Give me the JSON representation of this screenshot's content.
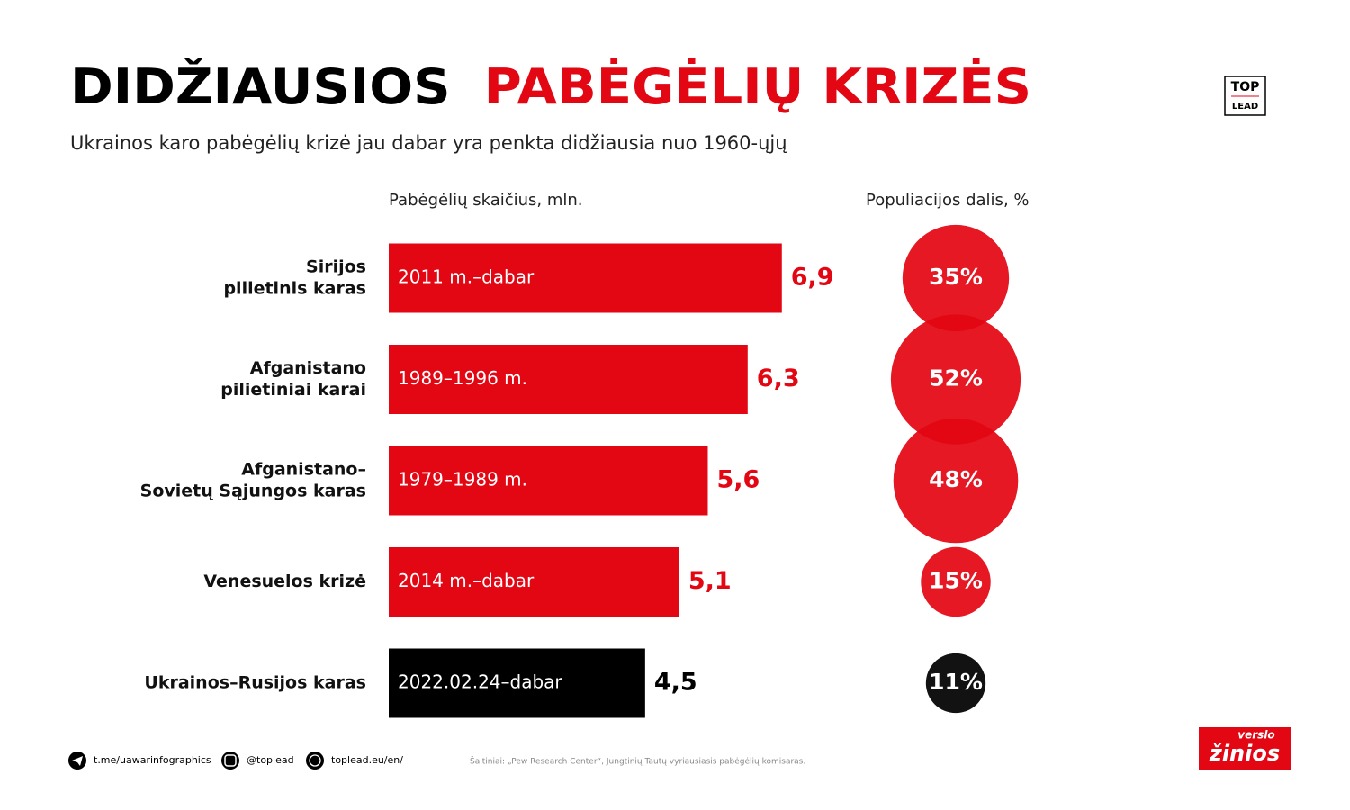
{
  "header": {
    "title": [
      "DIDŽIAUSIOS",
      "PABĖGĖLIŲ KRIZĖS"
    ],
    "subtitle": "Ukrainos karo pabėgėlių krizė jau dabar yra penkta didžiausia nuo 1960-ųjų"
  },
  "chart_data": {
    "type": "bar",
    "x_label": "Pabėgėlių skaičius, mln.",
    "categories": [
      [
        "Sirijos",
        "pilietinis karas"
      ],
      [
        "Afganistano",
        "pilietiniai karai"
      ],
      [
        "Afganistano–",
        "Sovietų Sąjungos karas"
      ],
      [
        "Venesuelos krizė"
      ],
      [
        "Ukrainos–Rusijos karas"
      ]
    ],
    "periods": [
      "2011 m.–dabar",
      "1989–1996 m.",
      "1979–1989 m.",
      "2014 m.–dabar",
      "2022.02.24–dabar"
    ],
    "values": [
      6.9,
      6.3,
      5.6,
      5.1,
      4.5
    ],
    "value_labels": [
      "6,9",
      "6,3",
      "5,6",
      "5,1",
      "4,5"
    ],
    "colors": [
      "#e30613",
      "#e30613",
      "#e30613",
      "#e30613",
      "#000000"
    ],
    "share": {
      "label": "Populiacijos dalis, %",
      "values": [
        35,
        52,
        48,
        15,
        11
      ],
      "value_labels": [
        "35%",
        "52%",
        "48%",
        "15%",
        "11%"
      ]
    }
  },
  "footer": {
    "links": [
      "t.me/uawarinfographics",
      "@toplead",
      "toplead.eu/en/"
    ],
    "source": "Šaltiniai: „Pew Research Center“, Jungtinių Tautų vyriausiasis pabėgėlių komisaras.",
    "logo_top": [
      "TOP",
      "LEAD"
    ],
    "logo_vz": [
      "verslo",
      "žinios"
    ]
  }
}
